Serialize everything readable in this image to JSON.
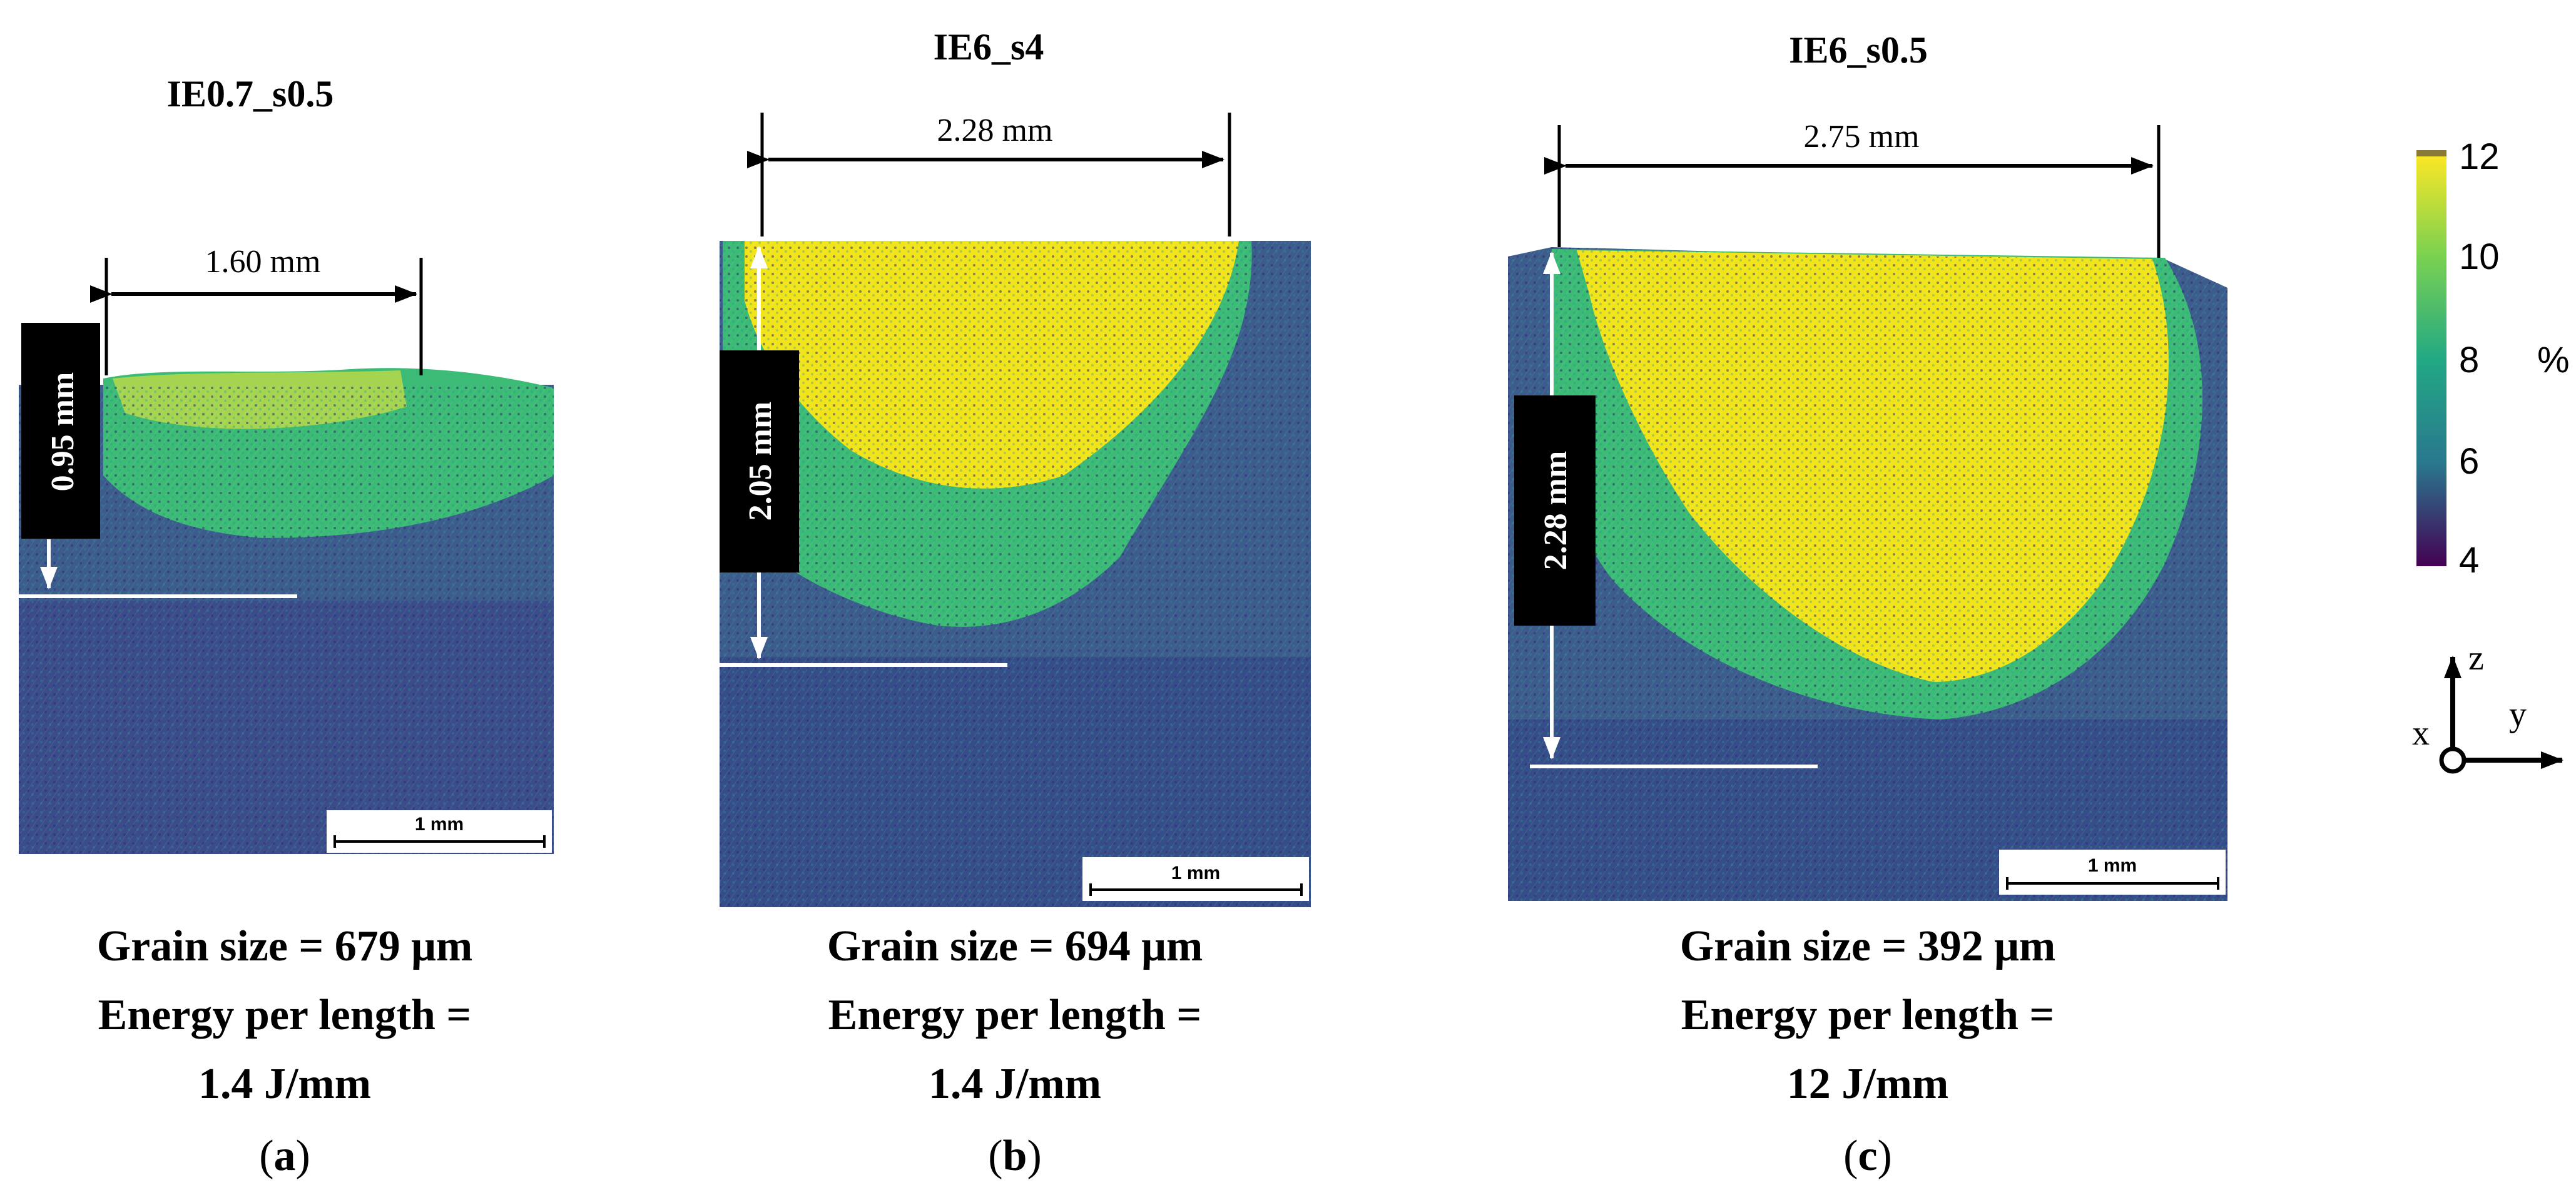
{
  "panels": [
    {
      "title": "IE0.7_s0.5",
      "width_label": "1.60 mm",
      "depth_label": "0.95 mm",
      "scale_label": "1 mm",
      "caption_lines": [
        "Grain size = 679 μm",
        "Energy per length =",
        "1.4 J/mm"
      ],
      "letter": "a"
    },
    {
      "title": "IE6_s4",
      "width_label": "2.28 mm",
      "depth_label": "2.05 mm",
      "scale_label": "1 mm",
      "caption_lines": [
        "Grain size = 694 μm",
        "Energy per length =",
        "1.4 J/mm"
      ],
      "letter": "b"
    },
    {
      "title": "IE6_s0.5",
      "width_label": "2.75 mm",
      "depth_label": "2.28 mm",
      "scale_label": "1 mm",
      "caption_lines": [
        "Grain size = 392 μm",
        "Energy per length =",
        "12 J/mm"
      ],
      "letter": "c"
    }
  ],
  "colorbar": {
    "ticks": [
      "12",
      "10",
      "8",
      "6",
      "4"
    ],
    "unit": "%",
    "colors": [
      "#fde725",
      "#35b779",
      "#21918c",
      "#31688e",
      "#440154"
    ]
  },
  "axes": {
    "z": "z",
    "y": "y",
    "x": "x"
  },
  "colors": {
    "background": "#440e5e",
    "matrix": "#3b5c8c",
    "teal": "#23898e",
    "green": "#3bbb75",
    "yellow": "#f2e41a"
  }
}
